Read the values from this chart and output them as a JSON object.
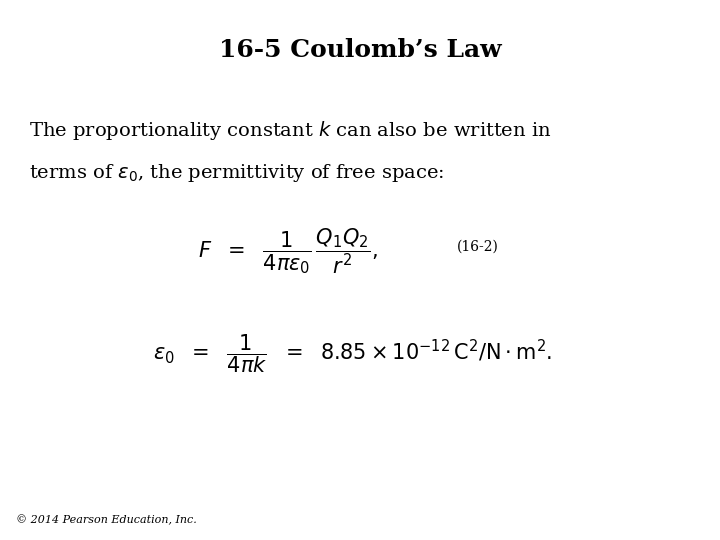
{
  "title": "16-5 Coulomb’s Law",
  "background_color": "#ffffff",
  "text_color": "#000000",
  "title_fontsize": 18,
  "body_fontsize": 14,
  "eq_fontsize": 15,
  "label_fontsize": 10,
  "footer_fontsize": 8,
  "footer_text": "© 2014 Pearson Education, Inc.",
  "eq1_label": "(16-2)",
  "paragraph_line1": "The proportionality constant $k$ can also be written in",
  "paragraph_line2": "terms of $\\varepsilon_0$, the permittivity of free space:"
}
